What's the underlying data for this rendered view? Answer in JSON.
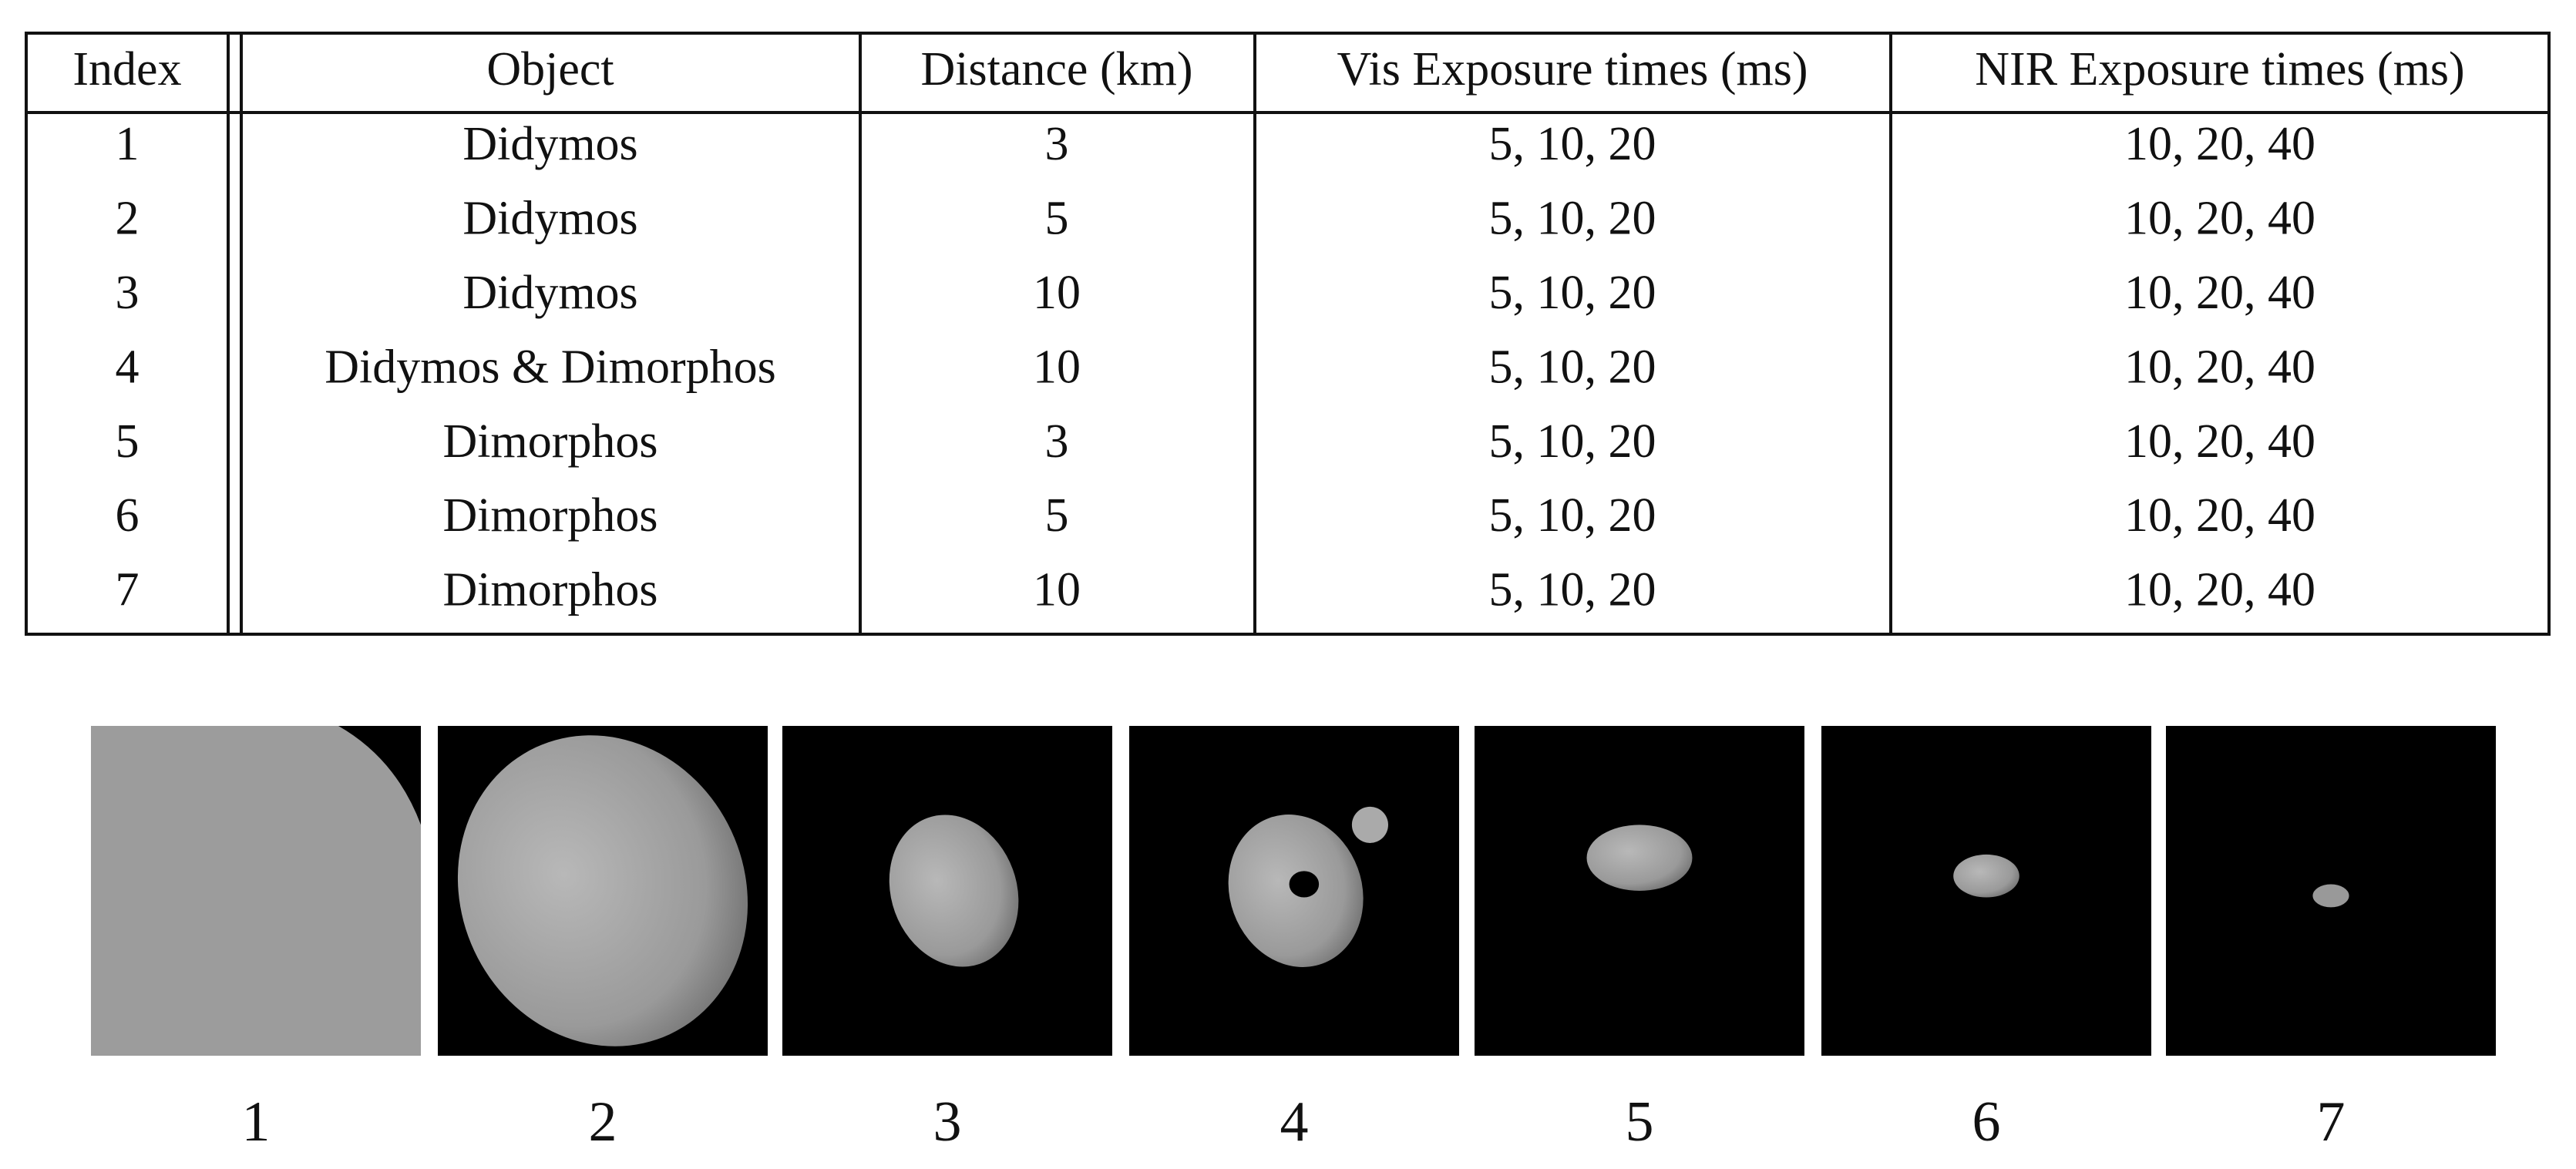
{
  "table": {
    "header": [
      "Index",
      "Object",
      "Distance (km)",
      "Vis Exposure times (ms)",
      "NIR Exposure times (ms)"
    ],
    "rows": [
      [
        1,
        "Didymos",
        3,
        "5, 10, 20",
        "10, 20, 40"
      ],
      [
        2,
        "Didymos",
        5,
        "5, 10, 20",
        "10, 20, 40"
      ],
      [
        3,
        "Didymos",
        10,
        "5, 10, 20",
        "10, 20, 40"
      ],
      [
        4,
        "Didymos & Dimorphos",
        10,
        "5, 10, 20",
        "10, 20, 40"
      ],
      [
        5,
        "Dimorphos",
        3,
        "5, 10, 20",
        "10, 20, 40"
      ],
      [
        6,
        "Dimorphos",
        5,
        "5, 10, 20",
        "10, 20, 40"
      ],
      [
        7,
        "Dimorphos",
        10,
        "5, 10, 20",
        "10, 20, 40"
      ]
    ]
  },
  "panels": [
    1,
    2,
    3,
    4,
    5,
    6,
    7
  ]
}
